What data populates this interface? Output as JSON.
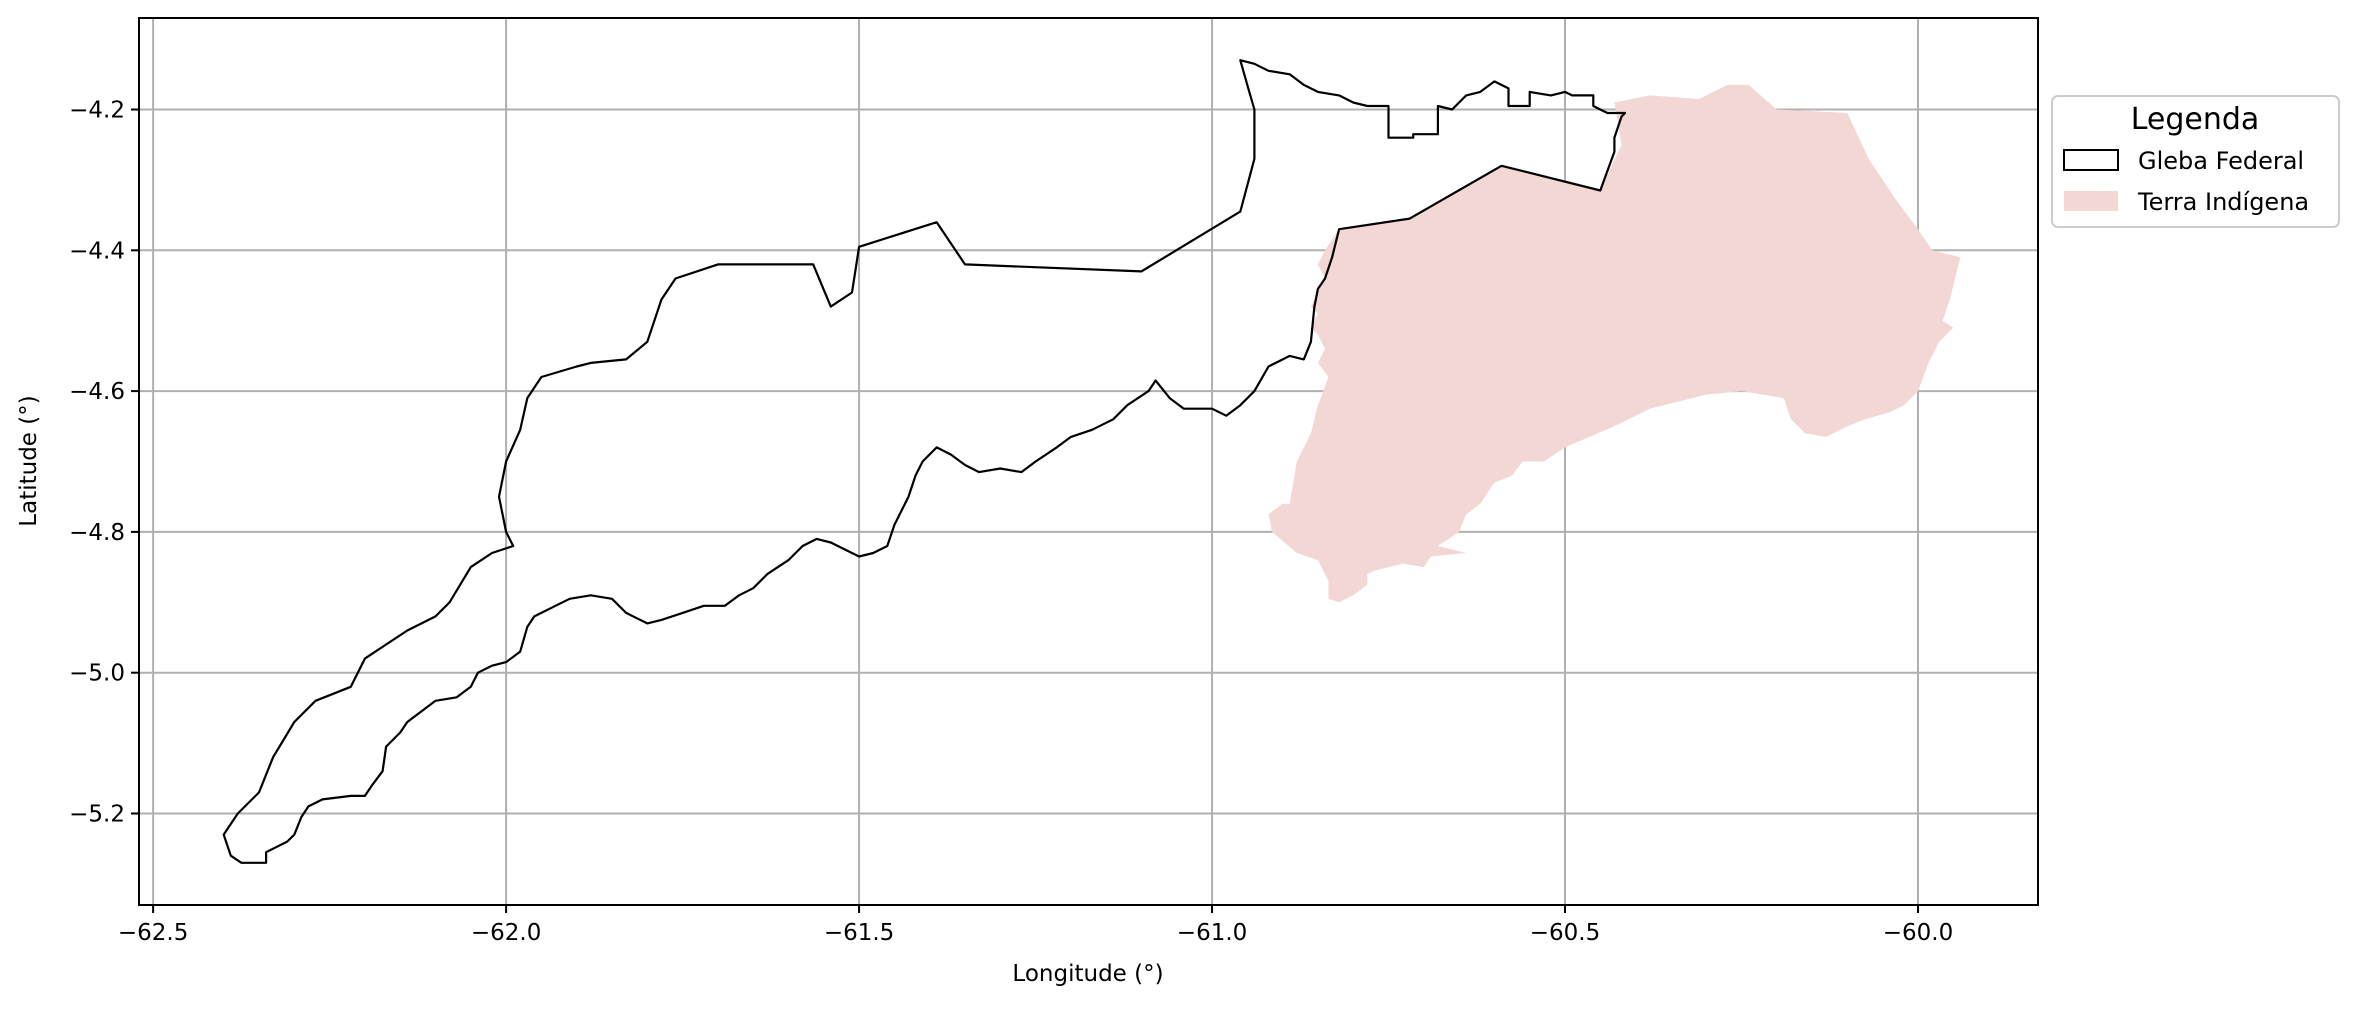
{
  "chart_data": {
    "type": "map",
    "xlabel": "Longitude (°)",
    "ylabel": "Latitude (°)",
    "xlim": [
      -62.52,
      -59.83
    ],
    "ylim": [
      -5.33,
      -4.07
    ],
    "grid": true,
    "xticks": [
      -62.5,
      -62.0,
      -61.5,
      -61.0,
      -60.5,
      -60.0
    ],
    "xtick_labels": [
      "−62.5",
      "−62.0",
      "−61.5",
      "−61.0",
      "−60.5",
      "−60.0"
    ],
    "yticks": [
      -4.2,
      -4.4,
      -4.6,
      -4.8,
      -5.0,
      -5.2
    ],
    "ytick_labels": [
      "−4.2",
      "−4.4",
      "−4.6",
      "−4.8",
      "−5.0",
      "−5.2"
    ],
    "legend": {
      "title": "Legenda",
      "placement": "outside-right-top",
      "entries": [
        {
          "label": "Gleba Federal",
          "style": "outline",
          "color": "#000000"
        },
        {
          "label": "Terra Indígena",
          "style": "fill",
          "color": "#f2d7d5"
        }
      ]
    },
    "layers": [
      {
        "name": "Terra Indígena",
        "fill": "#f2d7d5",
        "stroke": "none",
        "coordinates": [
          [
            -60.43,
            -4.19
          ],
          [
            -60.38,
            -4.18
          ],
          [
            -60.31,
            -4.185
          ],
          [
            -60.27,
            -4.165
          ],
          [
            -60.24,
            -4.165
          ],
          [
            -60.2,
            -4.2
          ],
          [
            -60.1,
            -4.205
          ],
          [
            -60.07,
            -4.27
          ],
          [
            -60.03,
            -4.33
          ],
          [
            -60.0,
            -4.37
          ],
          [
            -59.98,
            -4.4
          ],
          [
            -59.94,
            -4.41
          ],
          [
            -59.955,
            -4.47
          ],
          [
            -59.965,
            -4.5
          ],
          [
            -59.95,
            -4.51
          ],
          [
            -59.97,
            -4.53
          ],
          [
            -59.985,
            -4.56
          ],
          [
            -60.0,
            -4.6
          ],
          [
            -60.02,
            -4.62
          ],
          [
            -60.04,
            -4.63
          ],
          [
            -60.075,
            -4.64
          ],
          [
            -60.1,
            -4.65
          ],
          [
            -60.13,
            -4.665
          ],
          [
            -60.16,
            -4.66
          ],
          [
            -60.18,
            -4.64
          ],
          [
            -60.19,
            -4.61
          ],
          [
            -60.25,
            -4.6
          ],
          [
            -60.3,
            -4.605
          ],
          [
            -60.38,
            -4.625
          ],
          [
            -60.43,
            -4.65
          ],
          [
            -60.5,
            -4.68
          ],
          [
            -60.53,
            -4.7
          ],
          [
            -60.56,
            -4.7
          ],
          [
            -60.575,
            -4.72
          ],
          [
            -60.6,
            -4.73
          ],
          [
            -60.62,
            -4.76
          ],
          [
            -60.64,
            -4.775
          ],
          [
            -60.65,
            -4.8
          ],
          [
            -60.68,
            -4.82
          ],
          [
            -60.64,
            -4.83
          ],
          [
            -60.69,
            -4.835
          ],
          [
            -60.7,
            -4.85
          ],
          [
            -60.73,
            -4.845
          ],
          [
            -60.77,
            -4.855
          ],
          [
            -60.78,
            -4.86
          ],
          [
            -60.78,
            -4.875
          ],
          [
            -60.8,
            -4.89
          ],
          [
            -60.82,
            -4.9
          ],
          [
            -60.835,
            -4.895
          ],
          [
            -60.835,
            -4.87
          ],
          [
            -60.85,
            -4.84
          ],
          [
            -60.88,
            -4.83
          ],
          [
            -60.915,
            -4.8
          ],
          [
            -60.92,
            -4.775
          ],
          [
            -60.9,
            -4.76
          ],
          [
            -60.89,
            -4.76
          ],
          [
            -60.88,
            -4.7
          ],
          [
            -60.86,
            -4.66
          ],
          [
            -60.85,
            -4.62
          ],
          [
            -60.835,
            -4.58
          ],
          [
            -60.85,
            -4.56
          ],
          [
            -60.84,
            -4.54
          ],
          [
            -60.85,
            -4.52
          ],
          [
            -60.86,
            -4.51
          ],
          [
            -60.85,
            -4.49
          ],
          [
            -60.86,
            -4.48
          ],
          [
            -60.85,
            -4.46
          ],
          [
            -60.84,
            -4.44
          ],
          [
            -60.85,
            -4.42
          ],
          [
            -60.84,
            -4.4
          ],
          [
            -60.82,
            -4.37
          ],
          [
            -60.72,
            -4.355
          ],
          [
            -60.59,
            -4.28
          ],
          [
            -60.45,
            -4.315
          ],
          [
            -60.42,
            -4.25
          ],
          [
            -60.43,
            -4.19
          ]
        ]
      },
      {
        "name": "Gleba Federal",
        "fill": "none",
        "stroke": "#000000",
        "coordinates": [
          [
            -62.375,
            -5.27
          ],
          [
            -62.34,
            -5.27
          ],
          [
            -62.34,
            -5.255
          ],
          [
            -62.31,
            -5.24
          ],
          [
            -62.3,
            -5.23
          ],
          [
            -62.29,
            -5.205
          ],
          [
            -62.28,
            -5.19
          ],
          [
            -62.26,
            -5.18
          ],
          [
            -62.22,
            -5.175
          ],
          [
            -62.2,
            -5.175
          ],
          [
            -62.19,
            -5.16
          ],
          [
            -62.175,
            -5.14
          ],
          [
            -62.17,
            -5.105
          ],
          [
            -62.15,
            -5.085
          ],
          [
            -62.14,
            -5.07
          ],
          [
            -62.12,
            -5.055
          ],
          [
            -62.1,
            -5.04
          ],
          [
            -62.07,
            -5.035
          ],
          [
            -62.05,
            -5.02
          ],
          [
            -62.04,
            -5.0
          ],
          [
            -62.02,
            -4.99
          ],
          [
            -62.0,
            -4.985
          ],
          [
            -61.98,
            -4.97
          ],
          [
            -61.97,
            -4.935
          ],
          [
            -61.96,
            -4.92
          ],
          [
            -61.93,
            -4.905
          ],
          [
            -61.91,
            -4.895
          ],
          [
            -61.88,
            -4.89
          ],
          [
            -61.85,
            -4.895
          ],
          [
            -61.83,
            -4.915
          ],
          [
            -61.8,
            -4.93
          ],
          [
            -61.78,
            -4.925
          ],
          [
            -61.75,
            -4.915
          ],
          [
            -61.72,
            -4.905
          ],
          [
            -61.69,
            -4.905
          ],
          [
            -61.67,
            -4.89
          ],
          [
            -61.65,
            -4.88
          ],
          [
            -61.63,
            -4.86
          ],
          [
            -61.6,
            -4.84
          ],
          [
            -61.58,
            -4.82
          ],
          [
            -61.56,
            -4.81
          ],
          [
            -61.54,
            -4.815
          ],
          [
            -61.52,
            -4.825
          ],
          [
            -61.5,
            -4.835
          ],
          [
            -61.48,
            -4.83
          ],
          [
            -61.46,
            -4.82
          ],
          [
            -61.45,
            -4.79
          ],
          [
            -61.43,
            -4.75
          ],
          [
            -61.42,
            -4.72
          ],
          [
            -61.41,
            -4.7
          ],
          [
            -61.39,
            -4.68
          ],
          [
            -61.37,
            -4.69
          ],
          [
            -61.35,
            -4.705
          ],
          [
            -61.33,
            -4.715
          ],
          [
            -61.3,
            -4.71
          ],
          [
            -61.27,
            -4.715
          ],
          [
            -61.25,
            -4.7
          ],
          [
            -61.22,
            -4.68
          ],
          [
            -61.2,
            -4.665
          ],
          [
            -61.17,
            -4.655
          ],
          [
            -61.14,
            -4.64
          ],
          [
            -61.12,
            -4.62
          ],
          [
            -61.09,
            -4.6
          ],
          [
            -61.08,
            -4.585
          ],
          [
            -61.06,
            -4.61
          ],
          [
            -61.04,
            -4.625
          ],
          [
            -61.0,
            -4.625
          ],
          [
            -60.98,
            -4.635
          ],
          [
            -60.96,
            -4.62
          ],
          [
            -60.94,
            -4.6
          ],
          [
            -60.92,
            -4.565
          ],
          [
            -60.89,
            -4.55
          ],
          [
            -60.87,
            -4.555
          ],
          [
            -60.86,
            -4.53
          ],
          [
            -60.855,
            -4.48
          ],
          [
            -60.85,
            -4.455
          ],
          [
            -60.84,
            -4.44
          ],
          [
            -60.83,
            -4.41
          ],
          [
            -60.82,
            -4.37
          ],
          [
            -60.72,
            -4.355
          ],
          [
            -60.59,
            -4.28
          ],
          [
            -60.45,
            -4.315
          ],
          [
            -60.43,
            -4.26
          ],
          [
            -60.43,
            -4.24
          ],
          [
            -60.42,
            -4.21
          ],
          [
            -60.415,
            -4.205
          ],
          [
            -60.44,
            -4.205
          ],
          [
            -60.45,
            -4.2
          ],
          [
            -60.46,
            -4.195
          ],
          [
            -60.46,
            -4.18
          ],
          [
            -60.49,
            -4.18
          ],
          [
            -60.5,
            -4.175
          ],
          [
            -60.52,
            -4.18
          ],
          [
            -60.55,
            -4.175
          ],
          [
            -60.55,
            -4.195
          ],
          [
            -60.58,
            -4.195
          ],
          [
            -60.58,
            -4.17
          ],
          [
            -60.6,
            -4.16
          ],
          [
            -60.62,
            -4.175
          ],
          [
            -60.64,
            -4.18
          ],
          [
            -60.65,
            -4.19
          ],
          [
            -60.66,
            -4.2
          ],
          [
            -60.68,
            -4.195
          ],
          [
            -60.68,
            -4.235
          ],
          [
            -60.715,
            -4.235
          ],
          [
            -60.715,
            -4.24
          ],
          [
            -60.75,
            -4.24
          ],
          [
            -60.75,
            -4.195
          ],
          [
            -60.78,
            -4.195
          ],
          [
            -60.8,
            -4.19
          ],
          [
            -60.82,
            -4.18
          ],
          [
            -60.85,
            -4.175
          ],
          [
            -60.87,
            -4.165
          ],
          [
            -60.89,
            -4.15
          ],
          [
            -60.92,
            -4.145
          ],
          [
            -60.94,
            -4.135
          ],
          [
            -60.96,
            -4.13
          ],
          [
            -60.95,
            -4.165
          ],
          [
            -60.94,
            -4.2
          ],
          [
            -60.94,
            -4.27
          ],
          [
            -60.96,
            -4.345
          ],
          [
            -61.1,
            -4.43
          ],
          [
            -61.35,
            -4.42
          ],
          [
            -61.39,
            -4.36
          ],
          [
            -61.5,
            -4.395
          ],
          [
            -61.51,
            -4.46
          ],
          [
            -61.54,
            -4.48
          ],
          [
            -61.565,
            -4.42
          ],
          [
            -61.7,
            -4.42
          ],
          [
            -61.76,
            -4.44
          ],
          [
            -61.78,
            -4.47
          ],
          [
            -61.8,
            -4.53
          ],
          [
            -61.83,
            -4.555
          ],
          [
            -61.88,
            -4.56
          ],
          [
            -61.9,
            -4.565
          ],
          [
            -61.95,
            -4.58
          ],
          [
            -61.97,
            -4.61
          ],
          [
            -61.98,
            -4.655
          ],
          [
            -62.0,
            -4.7
          ],
          [
            -62.01,
            -4.75
          ],
          [
            -62.0,
            -4.8
          ],
          [
            -61.99,
            -4.82
          ],
          [
            -62.02,
            -4.83
          ],
          [
            -62.05,
            -4.85
          ],
          [
            -62.08,
            -4.9
          ],
          [
            -62.1,
            -4.92
          ],
          [
            -62.14,
            -4.94
          ],
          [
            -62.17,
            -4.96
          ],
          [
            -62.2,
            -4.98
          ],
          [
            -62.22,
            -5.02
          ],
          [
            -62.27,
            -5.04
          ],
          [
            -62.3,
            -5.07
          ],
          [
            -62.33,
            -5.12
          ],
          [
            -62.35,
            -5.17
          ],
          [
            -62.38,
            -5.2
          ],
          [
            -62.4,
            -5.23
          ],
          [
            -62.39,
            -5.26
          ],
          [
            -62.375,
            -5.27
          ]
        ]
      }
    ]
  }
}
